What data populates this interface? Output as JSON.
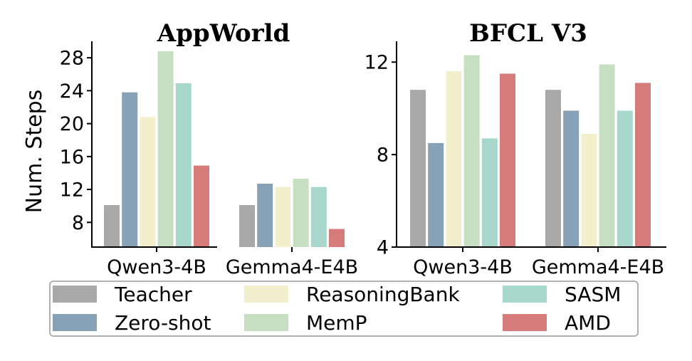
{
  "legend": [
    {
      "name": "Teacher",
      "color": "#a9a9a9"
    },
    {
      "name": "Zero-shot",
      "color": "#87a2b6"
    },
    {
      "name": "ReasoningBank",
      "color": "#f3eecb"
    },
    {
      "name": "MemP",
      "color": "#c6dfc1"
    },
    {
      "name": "SASM",
      "color": "#a8d8cc"
    },
    {
      "name": "AMD",
      "color": "#d57b7a"
    }
  ],
  "chart_data": [
    {
      "type": "bar",
      "title": "AppWorld",
      "ylabel": "Num. Steps",
      "xlabel": "",
      "categories": [
        "Qwen3-4B",
        "Gemma4-E4B"
      ],
      "ylim": [
        5,
        30
      ],
      "yticks": [
        8,
        12,
        16,
        20,
        24,
        28
      ],
      "series": [
        {
          "name": "Teacher",
          "values": [
            10.1,
            10.1
          ]
        },
        {
          "name": "Zero-shot",
          "values": [
            23.8,
            12.7
          ]
        },
        {
          "name": "ReasoningBank",
          "values": [
            20.8,
            12.3
          ]
        },
        {
          "name": "MemP",
          "values": [
            28.8,
            13.3
          ]
        },
        {
          "name": "SASM",
          "values": [
            24.9,
            12.3
          ]
        },
        {
          "name": "AMD",
          "values": [
            14.9,
            7.2
          ]
        }
      ]
    },
    {
      "type": "bar",
      "title": "BFCL V3",
      "ylabel": "",
      "xlabel": "",
      "categories": [
        "Qwen3-4B",
        "Gemma4-E4B"
      ],
      "ylim": [
        4,
        12.9
      ],
      "yticks": [
        4,
        8,
        12
      ],
      "series": [
        {
          "name": "Teacher",
          "values": [
            10.8,
            10.8
          ]
        },
        {
          "name": "Zero-shot",
          "values": [
            8.5,
            9.9
          ]
        },
        {
          "name": "ReasoningBank",
          "values": [
            11.6,
            8.9
          ]
        },
        {
          "name": "MemP",
          "values": [
            12.3,
            11.9
          ]
        },
        {
          "name": "SASM",
          "values": [
            8.7,
            9.9
          ]
        },
        {
          "name": "AMD",
          "values": [
            11.5,
            11.1
          ]
        }
      ]
    }
  ]
}
